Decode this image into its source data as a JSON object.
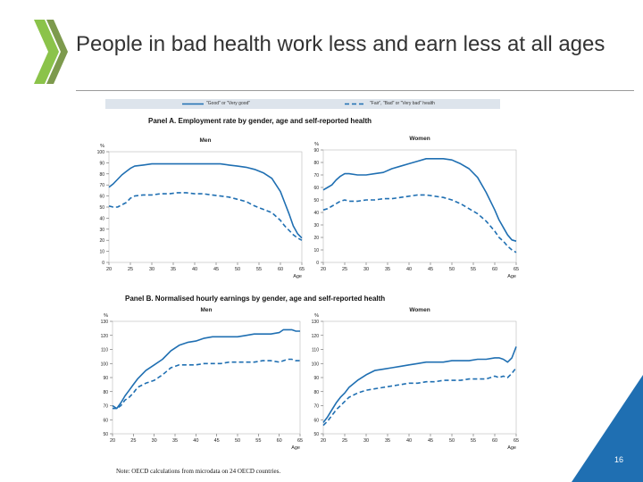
{
  "slide": {
    "title": "People in bad health work less and earn less at all ages",
    "page_number": "16",
    "note": "Note: OECD calculations from microdata on 24 OECD countries.",
    "accent_color": "#1f6fb2",
    "logo_color": "#8bc34a"
  },
  "legend": {
    "solid_label": "\"Good\" or \"Very good\"",
    "dashed_label": "\"Fair\", \"Bad\" or \"Very bad\" health"
  },
  "panels": {
    "a_title": "Panel A. Employment rate by gender, age and self-reported health",
    "b_title": "Panel B. Normalised hourly earnings by gender, age and self-reported health"
  },
  "chart_data": [
    {
      "id": "a_men",
      "type": "line",
      "title": "Men",
      "ylabel": "%",
      "xlabel": "Age",
      "ylim": [
        0,
        100
      ],
      "yticks": [
        0,
        10,
        20,
        30,
        40,
        50,
        60,
        70,
        80,
        90,
        100
      ],
      "xticks": [
        20,
        25,
        30,
        35,
        40,
        45,
        50,
        55,
        60,
        65
      ],
      "series": [
        {
          "name": "\"Good\" or \"Very good\"",
          "style": "solid",
          "x": [
            20,
            21,
            22,
            23,
            24,
            25,
            26,
            28,
            30,
            32,
            34,
            36,
            38,
            40,
            42,
            44,
            46,
            48,
            50,
            52,
            54,
            56,
            58,
            60,
            61,
            62,
            63,
            64,
            65
          ],
          "y": [
            68,
            71,
            75,
            79,
            82,
            85,
            87,
            88,
            89,
            89,
            89,
            89,
            89,
            89,
            89,
            89,
            89,
            88,
            87,
            86,
            84,
            81,
            76,
            64,
            54,
            44,
            33,
            26,
            22
          ]
        },
        {
          "name": "\"Fair\", \"Bad\" or \"Very bad\" health",
          "style": "dashed",
          "x": [
            20,
            21,
            22,
            23,
            24,
            25,
            26,
            28,
            30,
            32,
            34,
            36,
            38,
            40,
            42,
            44,
            46,
            48,
            50,
            52,
            54,
            56,
            58,
            60,
            61,
            62,
            63,
            64,
            65
          ],
          "y": [
            51,
            50,
            50,
            52,
            54,
            58,
            60,
            61,
            61,
            62,
            62,
            63,
            63,
            62,
            62,
            61,
            60,
            59,
            57,
            55,
            51,
            48,
            45,
            38,
            33,
            29,
            25,
            22,
            20
          ]
        }
      ]
    },
    {
      "id": "a_women",
      "type": "line",
      "title": "Women",
      "ylabel": "%",
      "xlabel": "Age",
      "ylim": [
        0,
        90
      ],
      "yticks": [
        0,
        10,
        20,
        30,
        40,
        50,
        60,
        70,
        80,
        90
      ],
      "xticks": [
        20,
        25,
        30,
        35,
        40,
        45,
        50,
        55,
        60,
        65
      ],
      "series": [
        {
          "name": "\"Good\" or \"Very good\"",
          "style": "solid",
          "x": [
            20,
            21,
            22,
            23,
            24,
            25,
            26,
            28,
            30,
            32,
            34,
            36,
            38,
            40,
            42,
            44,
            46,
            48,
            50,
            52,
            54,
            56,
            58,
            60,
            61,
            62,
            63,
            64,
            65
          ],
          "y": [
            58,
            60,
            62,
            66,
            69,
            71,
            71,
            70,
            70,
            71,
            72,
            75,
            77,
            79,
            81,
            83,
            83,
            83,
            82,
            79,
            75,
            68,
            56,
            42,
            34,
            28,
            22,
            18,
            17
          ]
        },
        {
          "name": "\"Fair\", \"Bad\" or \"Very bad\" health",
          "style": "dashed",
          "x": [
            20,
            21,
            22,
            23,
            24,
            25,
            26,
            28,
            30,
            32,
            34,
            36,
            38,
            40,
            42,
            44,
            46,
            48,
            50,
            52,
            54,
            56,
            58,
            60,
            61,
            62,
            63,
            64,
            65
          ],
          "y": [
            42,
            43,
            45,
            47,
            49,
            50,
            49,
            49,
            50,
            50,
            51,
            51,
            52,
            53,
            54,
            54,
            53,
            52,
            50,
            47,
            43,
            39,
            33,
            25,
            20,
            17,
            13,
            10,
            8
          ]
        }
      ]
    },
    {
      "id": "b_men",
      "type": "line",
      "title": "Men",
      "ylabel": "%",
      "xlabel": "Age",
      "ylim": [
        50,
        130
      ],
      "yticks": [
        50,
        60,
        70,
        80,
        90,
        100,
        110,
        120,
        130
      ],
      "xticks": [
        20,
        25,
        30,
        35,
        40,
        45,
        50,
        55,
        60,
        65
      ],
      "series": [
        {
          "name": "\"Good\" or \"Very good\"",
          "style": "solid",
          "x": [
            20,
            21,
            22,
            23,
            24,
            25,
            26,
            28,
            30,
            32,
            34,
            36,
            38,
            40,
            42,
            44,
            46,
            48,
            50,
            52,
            54,
            56,
            58,
            60,
            61,
            62,
            63,
            64,
            65
          ],
          "y": [
            68,
            68,
            72,
            77,
            81,
            85,
            89,
            95,
            99,
            103,
            109,
            113,
            115,
            116,
            118,
            119,
            119,
            119,
            119,
            120,
            121,
            121,
            121,
            122,
            124,
            124,
            124,
            123,
            123
          ]
        },
        {
          "name": "\"Fair\", \"Bad\" or \"Very bad\" health",
          "style": "dashed",
          "x": [
            20,
            21,
            22,
            23,
            24,
            25,
            26,
            28,
            30,
            32,
            34,
            36,
            38,
            40,
            42,
            44,
            46,
            48,
            50,
            52,
            54,
            56,
            58,
            60,
            61,
            62,
            63,
            64,
            65
          ],
          "y": [
            70,
            68,
            70,
            74,
            76,
            79,
            83,
            86,
            88,
            92,
            97,
            99,
            99,
            99,
            100,
            100,
            100,
            101,
            101,
            101,
            101,
            102,
            102,
            101,
            102,
            103,
            103,
            102,
            102
          ]
        }
      ]
    },
    {
      "id": "b_women",
      "type": "line",
      "title": "Women",
      "ylabel": "%",
      "xlabel": "Age",
      "ylim": [
        50,
        130
      ],
      "yticks": [
        50,
        60,
        70,
        80,
        90,
        100,
        110,
        120,
        130
      ],
      "xticks": [
        20,
        25,
        30,
        35,
        40,
        45,
        50,
        55,
        60,
        65
      ],
      "series": [
        {
          "name": "\"Good\" or \"Very good\"",
          "style": "solid",
          "x": [
            20,
            21,
            22,
            23,
            24,
            25,
            26,
            28,
            30,
            32,
            34,
            36,
            38,
            40,
            42,
            44,
            46,
            48,
            50,
            52,
            54,
            56,
            58,
            60,
            61,
            62,
            63,
            64,
            65
          ],
          "y": [
            58,
            62,
            67,
            72,
            76,
            79,
            83,
            88,
            92,
            95,
            96,
            97,
            98,
            99,
            100,
            101,
            101,
            101,
            102,
            102,
            102,
            103,
            103,
            104,
            104,
            103,
            101,
            104,
            112
          ]
        },
        {
          "name": "\"Fair\", \"Bad\" or \"Very bad\" health",
          "style": "dashed",
          "x": [
            20,
            21,
            22,
            23,
            24,
            25,
            26,
            28,
            30,
            32,
            34,
            36,
            38,
            40,
            42,
            44,
            46,
            48,
            50,
            52,
            54,
            56,
            58,
            60,
            61,
            62,
            63,
            64,
            65
          ],
          "y": [
            56,
            59,
            63,
            67,
            70,
            73,
            76,
            79,
            81,
            82,
            83,
            84,
            85,
            86,
            86,
            87,
            87,
            88,
            88,
            88,
            89,
            89,
            89,
            91,
            90,
            91,
            90,
            93,
            97
          ]
        }
      ]
    }
  ]
}
